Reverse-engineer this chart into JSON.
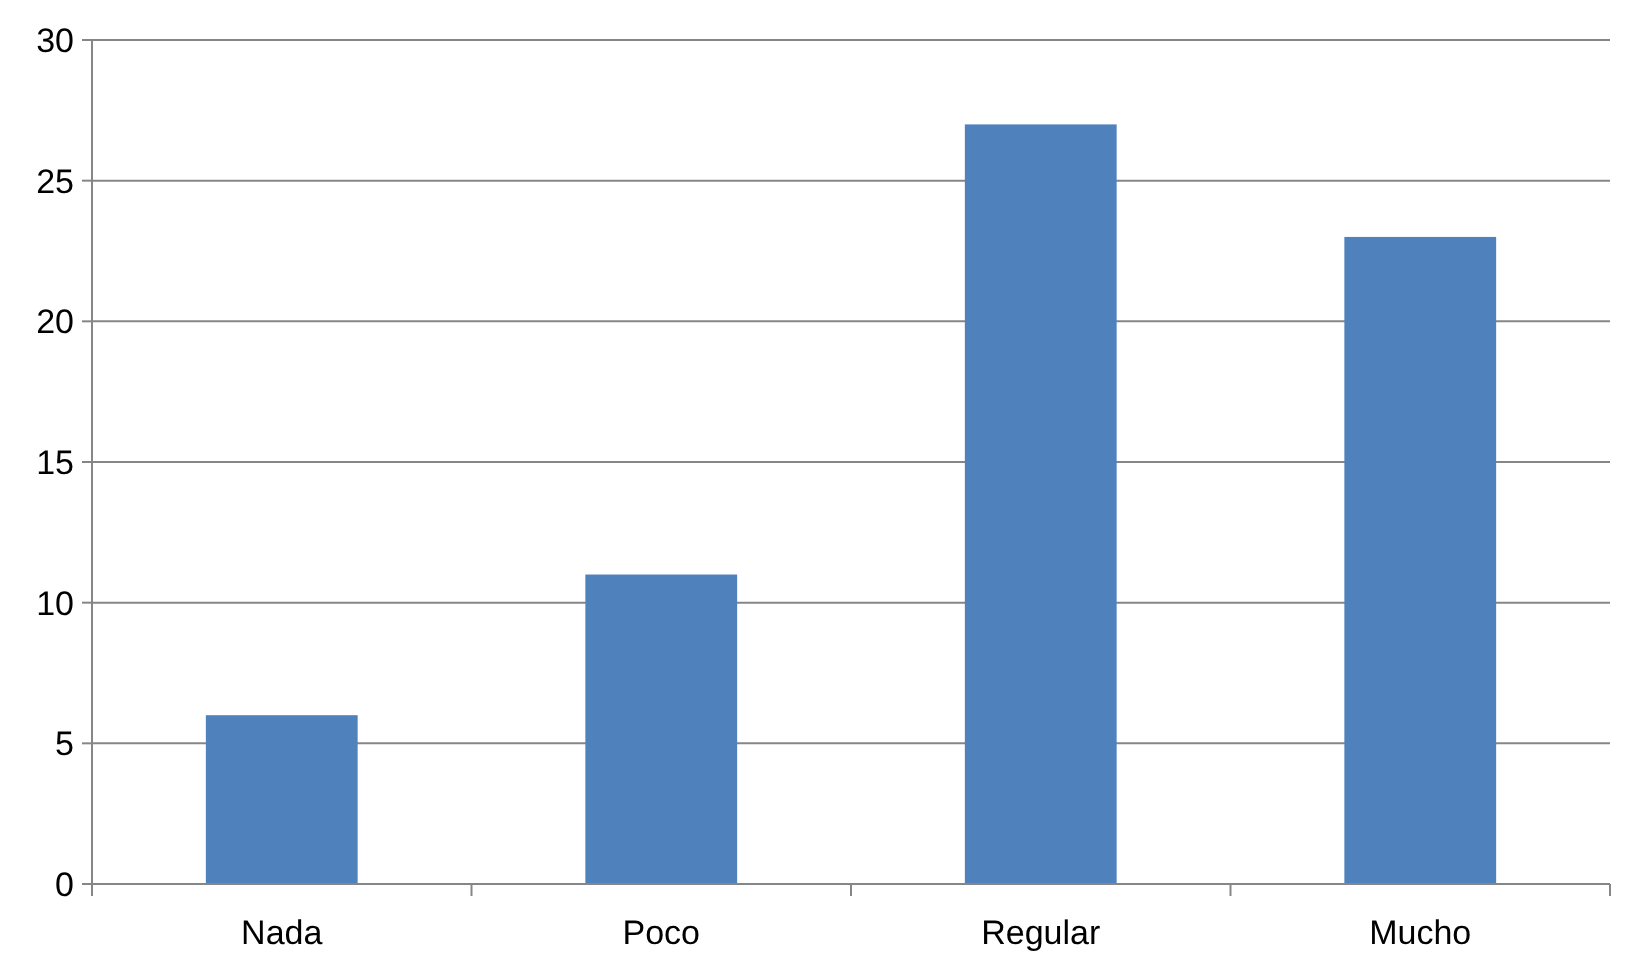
{
  "chart_data": {
    "type": "bar",
    "categories": [
      "Nada",
      "Poco",
      "Regular",
      "Mucho"
    ],
    "values": [
      6,
      11,
      27,
      23
    ],
    "color": "#4f81bd",
    "ylim": [
      0,
      30
    ],
    "yticks": [
      0,
      5,
      10,
      15,
      20,
      25,
      30
    ],
    "grid": "y"
  }
}
